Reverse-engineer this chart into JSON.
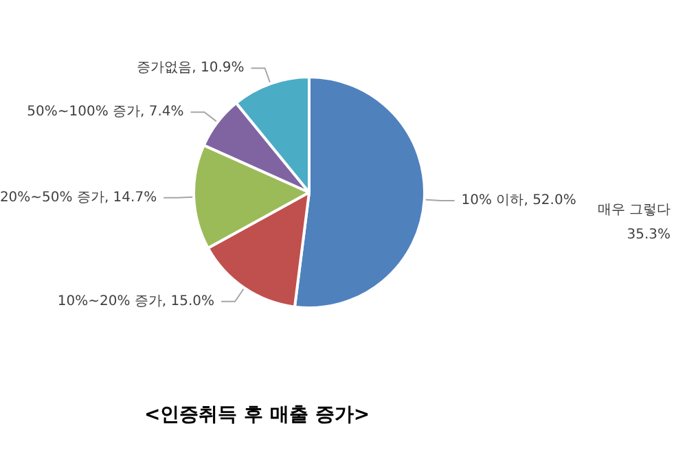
{
  "chart_data": {
    "type": "pie",
    "title": "<인증취득 후 매출 증가>",
    "categories": [
      "10% 이하",
      "10%~20% 증가",
      "20%~50% 증가",
      "50%~100% 증가",
      "증가없음"
    ],
    "values": [
      52.0,
      15.0,
      14.7,
      7.4,
      10.9
    ],
    "value_labels": [
      "52.0%",
      "15.0%",
      "14.7%",
      "7.4%",
      "10.9%"
    ],
    "colors": [
      "#4f81bd",
      "#c0504d",
      "#9bbb59",
      "#8064a2",
      "#4bacc6"
    ],
    "legend": false,
    "annotations": [
      "매우 그렇다",
      "35.3%"
    ]
  }
}
